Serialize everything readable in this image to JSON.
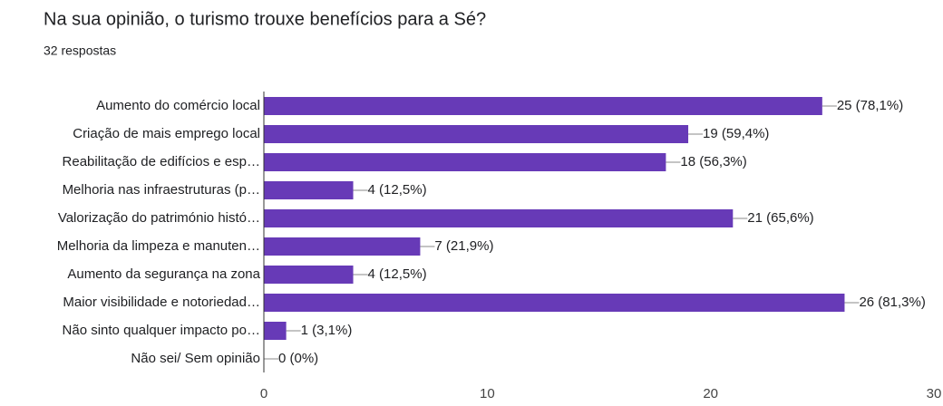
{
  "chart_data": {
    "type": "bar",
    "orientation": "horizontal",
    "title": "Na sua opinião, o turismo trouxe benefícios para a Sé?",
    "subtitle": "32 respostas",
    "categories": [
      "Aumento do comércio local",
      "Criação de mais emprego local",
      "Reabilitação de edifícios e esp…",
      "Melhoria nas infraestruturas (p…",
      "Valorização do património histó…",
      "Melhoria da limpeza e manuten…",
      "Aumento da segurança na zona",
      "Maior visibilidade e notoriedad…",
      "Não sinto qualquer impacto po…",
      "Não sei/ Sem opinião"
    ],
    "values": [
      25,
      19,
      18,
      4,
      21,
      7,
      4,
      26,
      1,
      0
    ],
    "value_labels": [
      "25 (78,1%)",
      "19 (59,4%)",
      "18 (56,3%)",
      "4 (12,5%)",
      "21 (65,6%)",
      "7 (21,9%)",
      "4 (12,5%)",
      "26 (81,3%)",
      "1 (3,1%)",
      "0 (0%)"
    ],
    "color": "#673ab7",
    "xlim": [
      0,
      30
    ],
    "xticks": [
      0,
      10,
      20,
      30
    ]
  }
}
